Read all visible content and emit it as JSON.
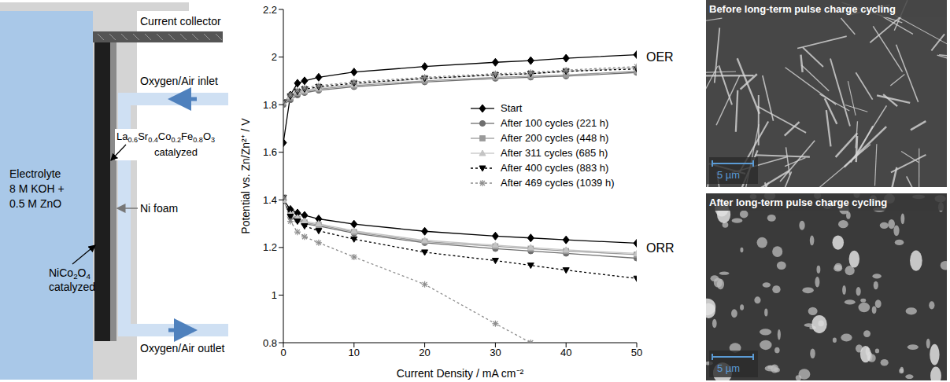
{
  "chart_data": {
    "type": "line",
    "x_label": "Current Density / mA cm⁻²",
    "y_label": "Potential vs. Zn/Zn²⁺ / V",
    "x": [
      0,
      1,
      2,
      3,
      5,
      10,
      20,
      30,
      35,
      40,
      50
    ],
    "xlim": [
      0,
      50
    ],
    "xticks": [
      0,
      10,
      20,
      30,
      40,
      50
    ],
    "ylim": [
      0.8,
      2.2
    ],
    "yticks": [
      0.8,
      1,
      1.2,
      1.4,
      1.6,
      1.8,
      2,
      2.2
    ],
    "grid": false,
    "legend": "center right",
    "series": [
      {
        "name": "Start",
        "color": "#000000",
        "marker": "diamond",
        "line_style": "solid",
        "oer_values": [
          1.64,
          1.84,
          1.89,
          1.9,
          1.915,
          1.937,
          1.96,
          1.978,
          1.985,
          1.995,
          2.01
        ],
        "orr_values": [
          1.4,
          1.36,
          1.345,
          1.335,
          1.32,
          1.298,
          1.268,
          1.248,
          1.24,
          1.232,
          1.218
        ]
      },
      {
        "name": "After 100 cycles (221 h)",
        "color": "#6e6e6e",
        "marker": "circle",
        "line_style": "solid",
        "oer_values": [
          1.8,
          1.82,
          1.84,
          1.85,
          1.86,
          1.875,
          1.895,
          1.91,
          1.915,
          1.92,
          1.935
        ],
        "orr_values": [
          1.4,
          1.33,
          1.315,
          1.3,
          1.29,
          1.26,
          1.22,
          1.195,
          1.185,
          1.175,
          1.155
        ]
      },
      {
        "name": "After 200 cycles (448 h)",
        "color": "#9a9a9a",
        "marker": "square",
        "line_style": "solid",
        "oer_values": [
          1.81,
          1.83,
          1.85,
          1.855,
          1.865,
          1.88,
          1.9,
          1.915,
          1.92,
          1.925,
          1.94
        ],
        "orr_values": [
          1.4,
          1.335,
          1.32,
          1.305,
          1.295,
          1.265,
          1.225,
          1.205,
          1.195,
          1.185,
          1.17
        ]
      },
      {
        "name": "After 311 cycles (685 h)",
        "color": "#c4c4c4",
        "marker": "triangle",
        "line_style": "solid",
        "oer_values": [
          1.81,
          1.835,
          1.855,
          1.86,
          1.87,
          1.885,
          1.91,
          1.925,
          1.93,
          1.94,
          1.955
        ],
        "orr_values": [
          1.4,
          1.34,
          1.325,
          1.31,
          1.3,
          1.27,
          1.23,
          1.21,
          1.2,
          1.19,
          1.175
        ]
      },
      {
        "name": "After 400 cycles (883 h)",
        "color": "#000000",
        "marker": "triangle-down",
        "line_style": "dotted",
        "oer_values": [
          1.81,
          1.835,
          1.855,
          1.865,
          1.875,
          1.89,
          1.91,
          1.925,
          1.93,
          1.94,
          1.95
        ],
        "orr_values": [
          1.41,
          1.33,
          1.31,
          1.29,
          1.27,
          1.235,
          1.18,
          1.145,
          1.125,
          1.105,
          1.07
        ]
      },
      {
        "name": "After 469 cycles (1039 h)",
        "color": "#8c8c8c",
        "marker": "asterisk",
        "line_style": "dotted",
        "oer_values": [
          1.81,
          1.84,
          1.86,
          1.87,
          1.88,
          1.895,
          1.915,
          1.93,
          1.935,
          1.945,
          1.96
        ],
        "orr_values": [
          1.41,
          1.31,
          1.265,
          1.245,
          1.22,
          1.16,
          1.045,
          0.88,
          0.8,
          null,
          null
        ]
      }
    ],
    "annotations": [
      {
        "text": "OER",
        "x": 50,
        "y": 2.0
      },
      {
        "text": "ORR",
        "x": 50,
        "y": 1.2
      }
    ]
  },
  "diagram": {
    "electrolyte": [
      "Electrolyte",
      "8 M KOH +",
      "0.5 M ZnO"
    ],
    "current_collector": "Current collector",
    "inlet": "Oxygen/Air inlet",
    "outlet": "Oxygen/Air outlet",
    "oer_catalyst": [
      "La0.6Sr0.4Co0.2Fe0.8O3",
      "catalyzed"
    ],
    "ni_foam": "Ni foam",
    "orr_catalyst": [
      "NiCo2O4",
      "catalyzed"
    ]
  },
  "images": [
    {
      "title": "Before long-term pulse charge cycling",
      "scale_bar": "5 µm"
    },
    {
      "title": "After long-term pulse charge cycling",
      "scale_bar": "5 µm"
    }
  ]
}
